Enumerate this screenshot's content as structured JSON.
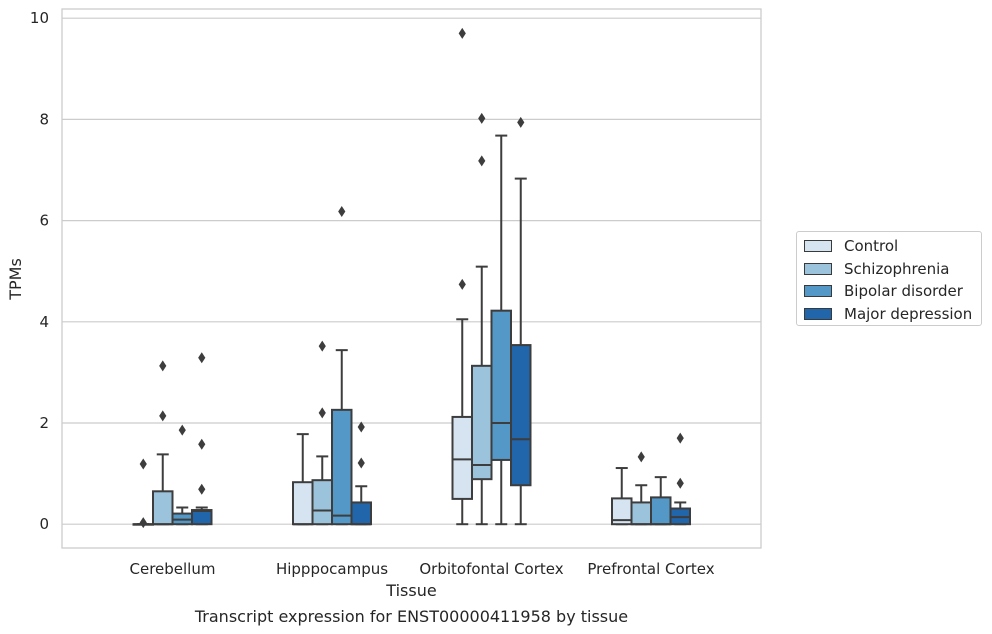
{
  "chart_data": {
    "type": "box",
    "title": "",
    "caption": "Transcript expression for ENST00000411958 by tissue",
    "xlabel": "Tissue",
    "ylabel": "TPMs",
    "ylim": [
      -0.45,
      10.2
    ],
    "yticks": [
      "0",
      "2",
      "4",
      "6",
      "8",
      "10"
    ],
    "grid": true,
    "legend_position": "right",
    "categories": [
      "Cerebellum",
      "Hipppocampus",
      "Orbitofontal Cortex",
      "Prefrontal Cortex"
    ],
    "series": [
      {
        "name": "Control",
        "color": "#d6e4f2",
        "boxes": [
          {
            "q1": 0,
            "median": 0,
            "q3": 0,
            "whisker_low": 0,
            "whisker_high": 0,
            "outliers": [
              1.19,
              0.03
            ]
          },
          {
            "q1": 0,
            "median": 0,
            "q3": 0.83,
            "whisker_low": 0,
            "whisker_high": 1.78,
            "outliers": []
          },
          {
            "q1": 0.5,
            "median": 1.28,
            "q3": 2.12,
            "whisker_low": 0,
            "whisker_high": 4.05,
            "outliers": [
              4.74,
              9.7
            ]
          },
          {
            "q1": 0,
            "median": 0.08,
            "q3": 0.51,
            "whisker_low": 0,
            "whisker_high": 1.11,
            "outliers": []
          }
        ]
      },
      {
        "name": "Schizophrenia",
        "color": "#9cc3dc",
        "boxes": [
          {
            "q1": 0,
            "median": 0,
            "q3": 0.65,
            "whisker_low": 0,
            "whisker_high": 1.38,
            "outliers": [
              3.13,
              2.14
            ]
          },
          {
            "q1": 0,
            "median": 0.27,
            "q3": 0.87,
            "whisker_low": 0,
            "whisker_high": 1.34,
            "outliers": [
              3.52,
              2.2
            ]
          },
          {
            "q1": 0.89,
            "median": 1.17,
            "q3": 3.13,
            "whisker_low": 0,
            "whisker_high": 5.09,
            "outliers": [
              8.02,
              7.18
            ]
          },
          {
            "q1": 0,
            "median": 0,
            "q3": 0.43,
            "whisker_low": 0,
            "whisker_high": 0.77,
            "outliers": [
              1.33
            ]
          }
        ]
      },
      {
        "name": "Bipolar disorder",
        "color": "#5398c6",
        "boxes": [
          {
            "q1": 0,
            "median": 0.09,
            "q3": 0.21,
            "whisker_low": 0,
            "whisker_high": 0.33,
            "outliers": [
              1.86
            ]
          },
          {
            "q1": 0,
            "median": 0.17,
            "q3": 2.26,
            "whisker_low": 0,
            "whisker_high": 3.44,
            "outliers": [
              6.18
            ]
          },
          {
            "q1": 1.27,
            "median": 2.0,
            "q3": 4.22,
            "whisker_low": 0,
            "whisker_high": 7.68,
            "outliers": []
          },
          {
            "q1": 0,
            "median": 0,
            "q3": 0.53,
            "whisker_low": 0,
            "whisker_high": 0.93,
            "outliers": []
          }
        ]
      },
      {
        "name": "Major depression",
        "color": "#2165ab",
        "boxes": [
          {
            "q1": 0,
            "median": 0.26,
            "q3": 0.28,
            "whisker_low": 0,
            "whisker_high": 0.33,
            "outliers": [
              3.29,
              1.58,
              0.69
            ]
          },
          {
            "q1": 0,
            "median": 0,
            "q3": 0.43,
            "whisker_low": 0,
            "whisker_high": 0.75,
            "outliers": [
              1.92,
              1.21
            ]
          },
          {
            "q1": 0.77,
            "median": 1.68,
            "q3": 3.54,
            "whisker_low": 0,
            "whisker_high": 6.83,
            "outliers": [
              7.94
            ]
          },
          {
            "q1": 0,
            "median": 0.14,
            "q3": 0.31,
            "whisker_low": 0,
            "whisker_high": 0.43,
            "outliers": [
              1.7,
              0.81
            ]
          }
        ]
      }
    ]
  }
}
